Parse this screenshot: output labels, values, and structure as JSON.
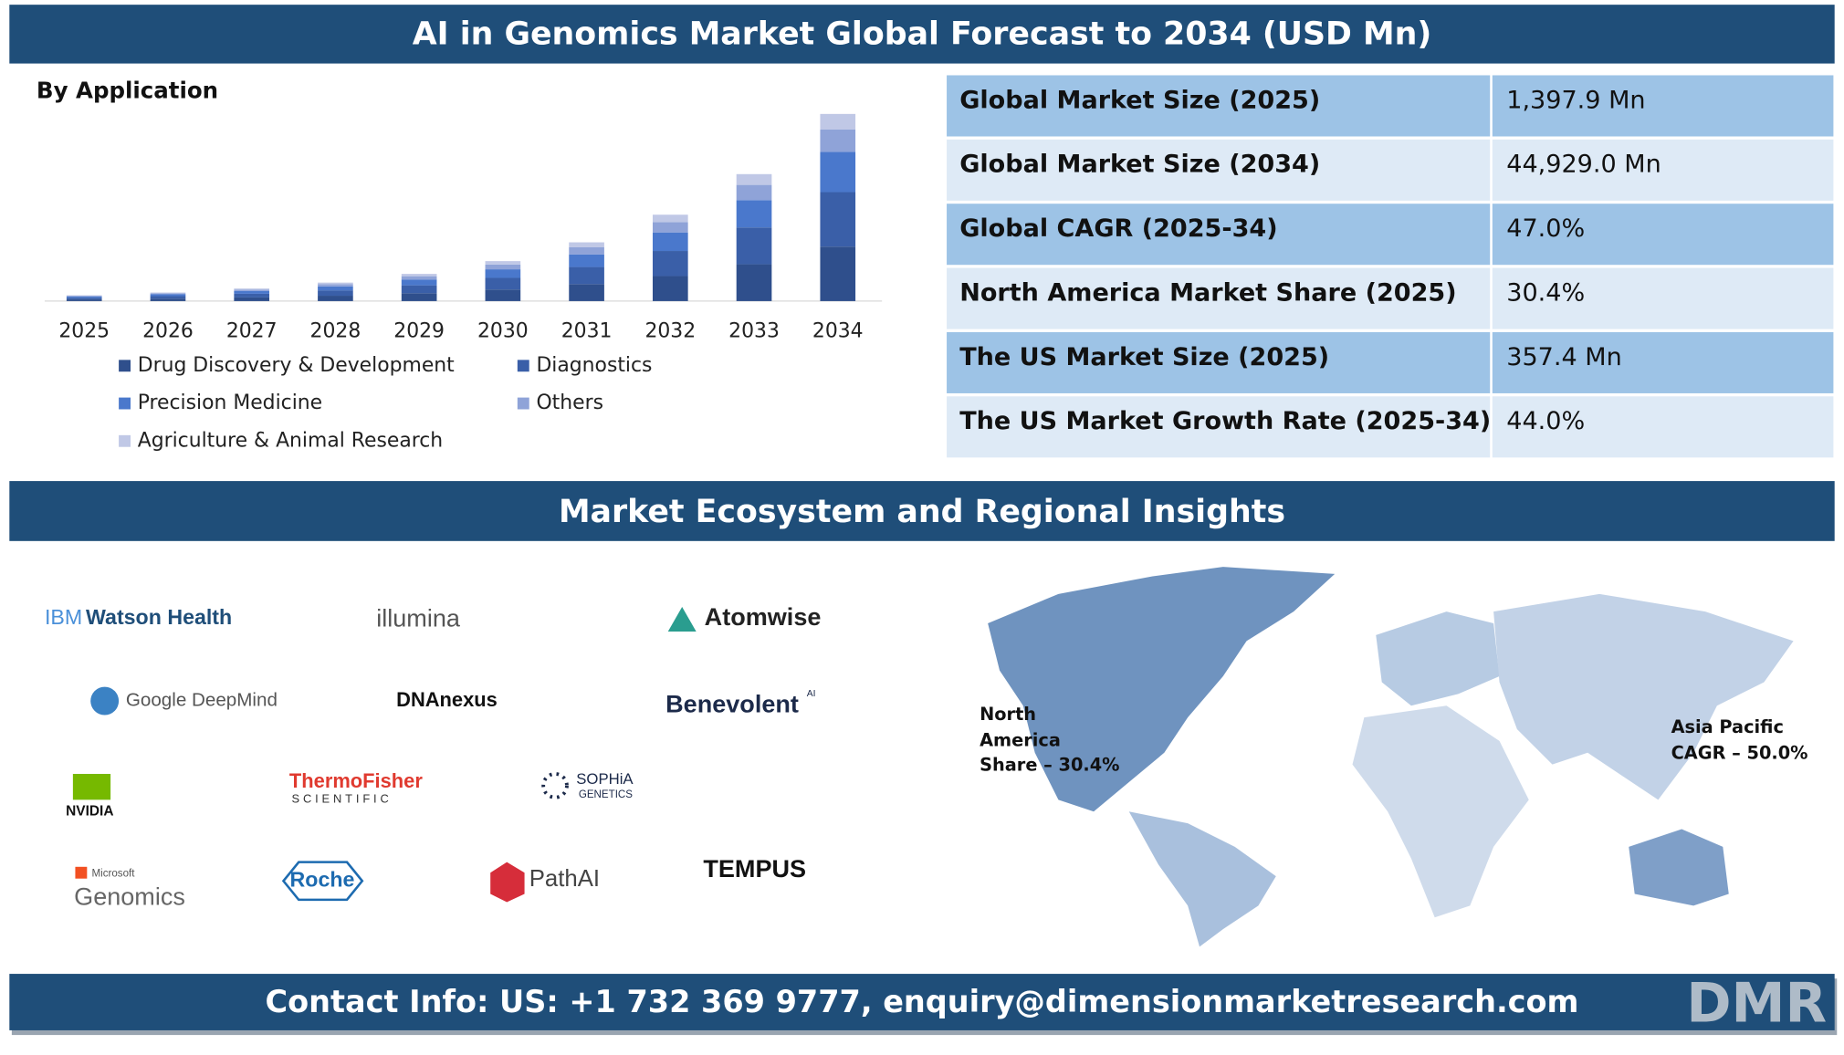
{
  "header": {
    "title": "AI in Genomics Market Global Forecast to 2034 (USD Mn)"
  },
  "chart_data": {
    "type": "bar",
    "stacked": true,
    "title": "By Application",
    "categories": [
      "2025",
      "2026",
      "2027",
      "2028",
      "2029",
      "2030",
      "2031",
      "2032",
      "2033",
      "2034"
    ],
    "ylim": [
      0,
      48000
    ],
    "series": [
      {
        "name": "Drug Discovery & Development",
        "color": "#2f4f8c",
        "values": [
          405,
          596,
          876,
          1288,
          1893,
          2783,
          4091,
          6013,
          8840,
          13080
        ]
      },
      {
        "name": "Diagnostics",
        "color": "#3a5fa8",
        "values": [
          405,
          596,
          876,
          1288,
          1893,
          2783,
          4091,
          6013,
          8840,
          13080
        ]
      },
      {
        "name": "Precision Medicine",
        "color": "#4a78cc",
        "values": [
          301,
          442,
          650,
          955,
          1404,
          2063,
          3033,
          4458,
          6554,
          9670
        ]
      },
      {
        "name": "Others",
        "color": "#8fa3d8",
        "values": [
          168,
          247,
          363,
          533,
          783,
          1152,
          1693,
          2488,
          3658,
          5400
        ]
      },
      {
        "name": "Agriculture & Animal Research",
        "color": "#c0c8e6",
        "values": [
          119,
          174,
          256,
          377,
          555,
          815,
          1198,
          1764,
          2590,
          3699
        ]
      }
    ]
  },
  "table": {
    "rows": [
      [
        "Global Market Size (2025)",
        "1,397.9 Mn"
      ],
      [
        "Global Market Size (2034)",
        "44,929.0 Mn"
      ],
      [
        "Global CAGR (2025-34)",
        "47.0%"
      ],
      [
        "North America Market Share (2025)",
        "30.4%"
      ],
      [
        "The US Market Size (2025)",
        "357.4 Mn"
      ],
      [
        "The US Market Growth Rate (2025-34)",
        "44.0%"
      ]
    ]
  },
  "section": {
    "title": "Market Ecosystem and Regional Insights"
  },
  "logos": [
    [
      "IBM",
      "Watson Health"
    ],
    [
      "illumina"
    ],
    [
      "Atomwise"
    ],
    [
      "Google DeepMind"
    ],
    [
      "DNAnexus"
    ],
    [
      "Benevolent",
      "AI"
    ],
    [
      "NVIDIA"
    ],
    [
      "ThermoFisher",
      "SCIENTIFIC"
    ],
    [
      "SOPHiA",
      "GENETICS"
    ],
    [
      "Microsoft",
      "Genomics"
    ],
    [
      "Roche"
    ],
    [
      "PathAI"
    ],
    [
      "TEMPUS"
    ]
  ],
  "map": {
    "north_america": [
      "North",
      "America",
      "Share – 30.4%"
    ],
    "asia_pacific": [
      "Asia Pacific",
      "CAGR – 50.0%"
    ]
  },
  "footer": {
    "contact": "Contact Info: US: +1 732 369 9777, enquiry@dimensionmarketresearch.com",
    "logo": "DMR"
  }
}
